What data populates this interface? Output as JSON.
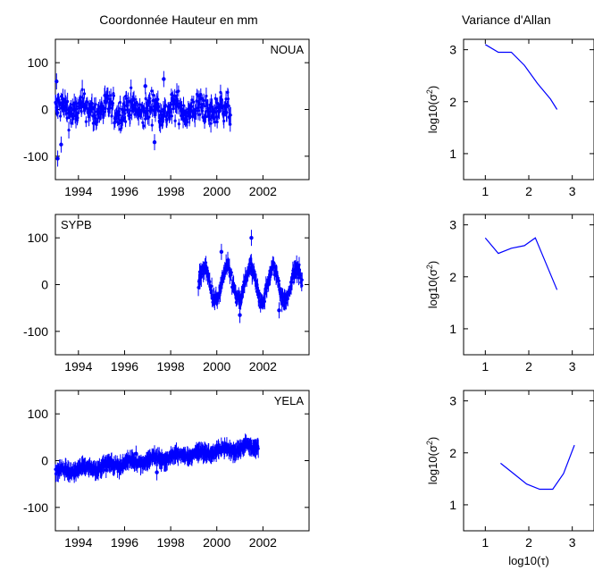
{
  "titles": {
    "left": "Coordonnée Hauteur en mm",
    "right": "Variance d'Allan"
  },
  "chart_data": [
    {
      "type": "scatter",
      "station": "NOUA",
      "xlim": [
        1993,
        2004
      ],
      "ylim": [
        -150,
        150
      ],
      "xticks": [
        1994,
        1996,
        1998,
        2000,
        2002
      ],
      "yticks": [
        100,
        0,
        -100
      ],
      "series": [
        {
          "segments": [
            {
              "x_start": 1993.0,
              "x_end": 2000.6,
              "center": 0,
              "amp": 30,
              "seasonal": 10,
              "trend": 0
            }
          ],
          "outliers": [
            {
              "x": 1993.1,
              "y": -105
            },
            {
              "x": 1993.25,
              "y": -75
            },
            {
              "x": 1993.05,
              "y": 60
            },
            {
              "x": 1996.9,
              "y": 50
            },
            {
              "x": 1997.3,
              "y": -70
            },
            {
              "x": 1997.7,
              "y": 65
            }
          ]
        }
      ],
      "color": "#0000ff"
    },
    {
      "type": "scatter",
      "station": "SYPB",
      "xlim": [
        1993,
        2004
      ],
      "ylim": [
        -150,
        150
      ],
      "xticks": [
        1994,
        1996,
        1998,
        2000,
        2002
      ],
      "yticks": [
        100,
        0,
        -100
      ],
      "series": [
        {
          "segments": [
            {
              "x_start": 1999.2,
              "x_end": 2003.7,
              "center": 0,
              "amp": 15,
              "seasonal": 35,
              "trend": 0
            }
          ],
          "outliers": [
            {
              "x": 2001.5,
              "y": 100
            },
            {
              "x": 2001.0,
              "y": -65
            },
            {
              "x": 2002.7,
              "y": -55
            },
            {
              "x": 2000.2,
              "y": 70
            }
          ]
        }
      ],
      "color": "#0000ff"
    },
    {
      "type": "scatter",
      "station": "YELA",
      "xlim": [
        1993,
        2004
      ],
      "ylim": [
        -150,
        150
      ],
      "xticks": [
        1994,
        1996,
        1998,
        2000,
        2002
      ],
      "yticks": [
        100,
        0,
        -100
      ],
      "series": [
        {
          "segments": [
            {
              "x_start": 1993.0,
              "x_end": 2001.8,
              "center": -25,
              "amp": 7,
              "seasonal": 5,
              "trend": 6.5
            }
          ],
          "outliers": [
            {
              "x": 1996.5,
              "y": 15
            },
            {
              "x": 1997.4,
              "y": -25
            },
            {
              "x": 1995.2,
              "y": -20
            }
          ]
        }
      ],
      "color": "#0000ff"
    },
    {
      "type": "line",
      "xlim": [
        0.5,
        3.5
      ],
      "ylim": [
        0.5,
        3.2
      ],
      "xticks": [
        1,
        2,
        3
      ],
      "yticks": [
        3,
        2,
        1
      ],
      "ylabel_base": "log10(σ",
      "ylabel_sup": "2",
      "ylabel_end": ")",
      "x": [
        1.0,
        1.3,
        1.6,
        1.9,
        2.2,
        2.5,
        2.65
      ],
      "y": [
        3.1,
        2.95,
        2.95,
        2.7,
        2.35,
        2.05,
        1.85
      ],
      "color": "#0000ff"
    },
    {
      "type": "line",
      "xlim": [
        0.5,
        3.5
      ],
      "ylim": [
        0.5,
        3.2
      ],
      "xticks": [
        1,
        2,
        3
      ],
      "yticks": [
        3,
        2,
        1
      ],
      "ylabel_base": "log10(σ",
      "ylabel_sup": "2",
      "ylabel_end": ")",
      "x": [
        1.0,
        1.3,
        1.6,
        1.9,
        2.15,
        2.65
      ],
      "y": [
        2.75,
        2.45,
        2.55,
        2.6,
        2.75,
        1.75
      ],
      "color": "#0000ff"
    },
    {
      "type": "line",
      "xlim": [
        0.5,
        3.5
      ],
      "ylim": [
        0.5,
        3.2
      ],
      "xticks": [
        1,
        2,
        3
      ],
      "yticks": [
        3,
        2,
        1
      ],
      "ylabel_base": "log10(σ",
      "ylabel_sup": "2",
      "ylabel_end": ")",
      "xlabel_base": "log10(τ)",
      "x": [
        1.35,
        1.65,
        1.95,
        2.25,
        2.55,
        2.8,
        3.05
      ],
      "y": [
        1.8,
        1.6,
        1.4,
        1.3,
        1.3,
        1.6,
        2.15
      ],
      "color": "#0000ff"
    }
  ]
}
